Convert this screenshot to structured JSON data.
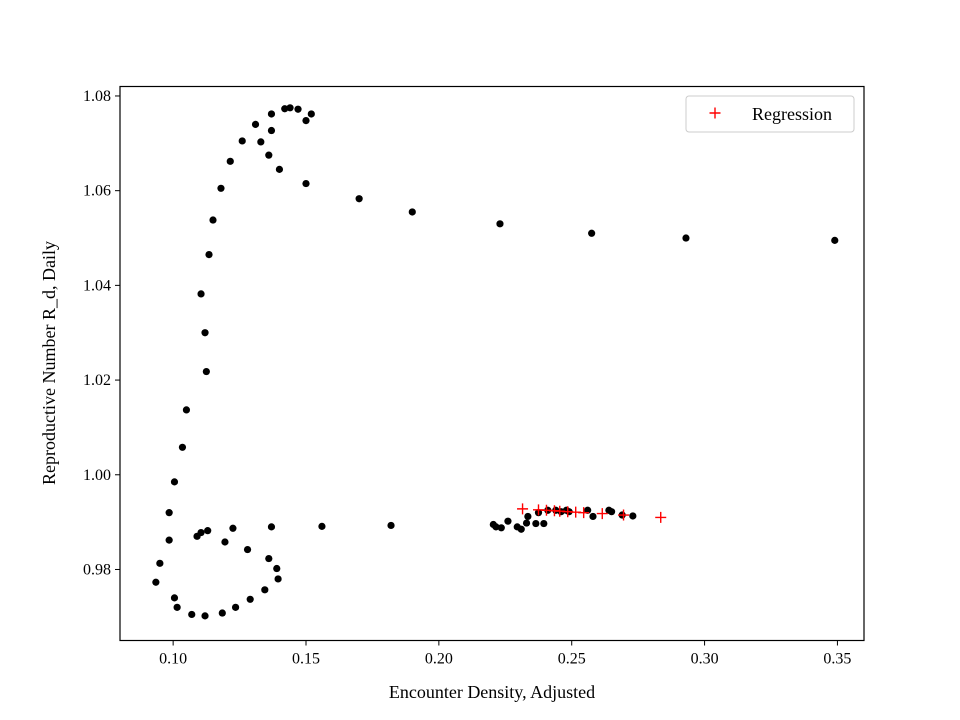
{
  "chart_data": {
    "type": "scatter",
    "title": "",
    "xlabel": "Encounter Density, Adjusted",
    "ylabel": "Reproductive Number R_d, Daily",
    "xlim": [
      0.08,
      0.36
    ],
    "ylim": [
      0.965,
      1.082
    ],
    "xticks": [
      0.1,
      0.15,
      0.2,
      0.25,
      0.3,
      0.35
    ],
    "xtick_labels": [
      "0.10",
      "0.15",
      "0.20",
      "0.25",
      "0.30",
      "0.35"
    ],
    "yticks": [
      0.98,
      1.0,
      1.02,
      1.04,
      1.06,
      1.08
    ],
    "ytick_labels": [
      "0.98",
      "1.00",
      "1.02",
      "1.04",
      "1.06",
      "1.08"
    ],
    "grid": false,
    "legend_position": "top-right",
    "series": [
      {
        "marker": "dot",
        "color": "#000000",
        "points": [
          [
            0.349,
            1.0495
          ],
          [
            0.293,
            1.05
          ],
          [
            0.2575,
            1.051
          ],
          [
            0.223,
            1.053
          ],
          [
            0.19,
            1.0555
          ],
          [
            0.17,
            1.0583
          ],
          [
            0.15,
            1.0615
          ],
          [
            0.14,
            1.0645
          ],
          [
            0.136,
            1.0675
          ],
          [
            0.133,
            1.0703
          ],
          [
            0.131,
            1.074
          ],
          [
            0.137,
            1.0727
          ],
          [
            0.137,
            1.0762
          ],
          [
            0.142,
            1.0773
          ],
          [
            0.144,
            1.0775
          ],
          [
            0.147,
            1.0772
          ],
          [
            0.152,
            1.0762
          ],
          [
            0.15,
            1.0748
          ],
          [
            0.126,
            1.0705
          ],
          [
            0.1215,
            1.0662
          ],
          [
            0.118,
            1.0605
          ],
          [
            0.115,
            1.0538
          ],
          [
            0.1135,
            1.0465
          ],
          [
            0.1105,
            1.0382
          ],
          [
            0.112,
            1.03
          ],
          [
            0.1125,
            1.0218
          ],
          [
            0.105,
            1.0137
          ],
          [
            0.1035,
            1.0058
          ],
          [
            0.1005,
            0.9985
          ],
          [
            0.0985,
            0.992
          ],
          [
            0.0985,
            0.9862
          ],
          [
            0.095,
            0.9813
          ],
          [
            0.0935,
            0.9773
          ],
          [
            0.1005,
            0.974
          ],
          [
            0.1015,
            0.972
          ],
          [
            0.107,
            0.9705
          ],
          [
            0.112,
            0.9702
          ],
          [
            0.1185,
            0.9708
          ],
          [
            0.1235,
            0.972
          ],
          [
            0.129,
            0.9737
          ],
          [
            0.1345,
            0.9757
          ],
          [
            0.1395,
            0.978
          ],
          [
            0.139,
            0.9802
          ],
          [
            0.136,
            0.9823
          ],
          [
            0.128,
            0.9842
          ],
          [
            0.1195,
            0.9858
          ],
          [
            0.109,
            0.987
          ],
          [
            0.1105,
            0.9878
          ],
          [
            0.113,
            0.9882
          ],
          [
            0.1225,
            0.9887
          ],
          [
            0.137,
            0.989
          ],
          [
            0.156,
            0.9891
          ],
          [
            0.182,
            0.9893
          ],
          [
            0.2205,
            0.9895
          ],
          [
            0.2215,
            0.989
          ],
          [
            0.2235,
            0.9888
          ],
          [
            0.226,
            0.9902
          ],
          [
            0.2295,
            0.989
          ],
          [
            0.231,
            0.9885
          ],
          [
            0.233,
            0.9898
          ],
          [
            0.2335,
            0.9912
          ],
          [
            0.2365,
            0.9897
          ],
          [
            0.2375,
            0.992
          ],
          [
            0.2395,
            0.9897
          ],
          [
            0.241,
            0.9925
          ],
          [
            0.244,
            0.9925
          ],
          [
            0.246,
            0.9922
          ],
          [
            0.248,
            0.9925
          ],
          [
            0.249,
            0.9922
          ],
          [
            0.256,
            0.9925
          ],
          [
            0.258,
            0.9912
          ],
          [
            0.264,
            0.9925
          ],
          [
            0.265,
            0.9922
          ],
          [
            0.269,
            0.9915
          ],
          [
            0.273,
            0.9913
          ]
        ]
      },
      {
        "name": "Regression",
        "marker": "plus",
        "color": "#ff0000",
        "points": [
          [
            0.2315,
            0.9928
          ],
          [
            0.2375,
            0.9926
          ],
          [
            0.2405,
            0.9925
          ],
          [
            0.2435,
            0.9924
          ],
          [
            0.2455,
            0.9923
          ],
          [
            0.2485,
            0.9922
          ],
          [
            0.2515,
            0.9921
          ],
          [
            0.2545,
            0.992
          ],
          [
            0.2615,
            0.9918
          ],
          [
            0.2695,
            0.9915
          ],
          [
            0.2835,
            0.991
          ]
        ]
      }
    ]
  }
}
